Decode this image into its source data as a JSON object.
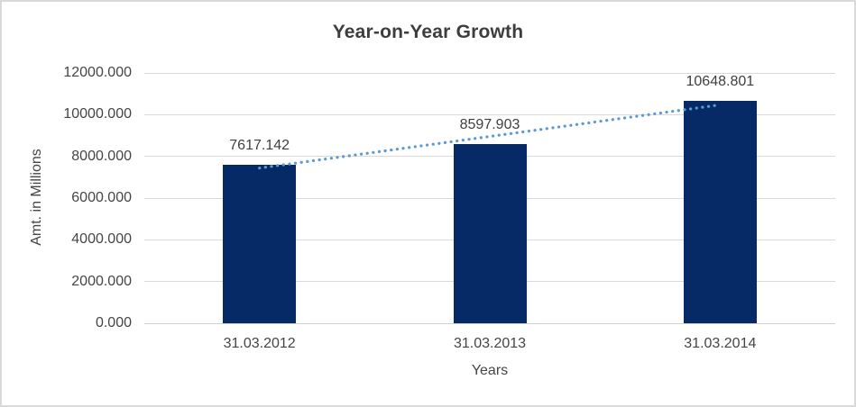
{
  "frame": {
    "background": "#ffffff",
    "border_color": "#d9d9d9"
  },
  "chart_data": {
    "type": "bar",
    "title": "Year-on-Year Growth",
    "xlabel": "Years",
    "ylabel": "Amt. in Millions",
    "categories": [
      "31.03.2012",
      "31.03.2013",
      "31.03.2014"
    ],
    "values": [
      7617.142,
      8597.903,
      10648.801
    ],
    "data_labels": [
      "7617.142",
      "8597.903",
      "10648.801"
    ],
    "ylim": [
      0,
      12000
    ],
    "ytick_step": 2000,
    "ytick_labels": [
      "0.000",
      "2000.000",
      "4000.000",
      "6000.000",
      "8000.000",
      "10000.000",
      "12000.000"
    ],
    "grid": true,
    "legend_position": "none",
    "bar_color": "#062a66",
    "gridline_color": "#d9d9d9",
    "axis_line_color": "#d0d0d0",
    "text_color": "#454545",
    "title_color": "#3d3d3d",
    "trendline": {
      "type": "linear",
      "style": "dotted",
      "color": "#5b9bd5"
    }
  }
}
